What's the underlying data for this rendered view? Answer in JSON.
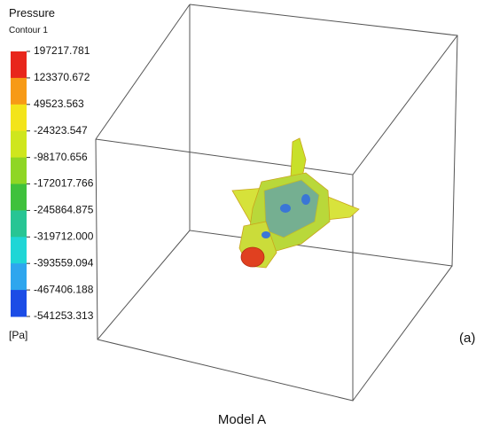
{
  "legend": {
    "title": "Pressure",
    "subtitle": "Contour 1",
    "labels": [
      "197217.781",
      "123370.672",
      "49523.563",
      "-24323.547",
      "-98170.656",
      "-172017.766",
      "-245864.875",
      "-319712.000",
      "-393559.094",
      "-467406.188",
      "-541253.313"
    ],
    "colors": [
      "#e8261c",
      "#f79a16",
      "#f3e41a",
      "#cfe61d",
      "#8fd624",
      "#3fc13c",
      "#27c594",
      "#1fd6d6",
      "#2ea6ee",
      "#1b4ce6"
    ],
    "unit": "[Pa]"
  },
  "caption": "Model A",
  "panel_label": "(a)"
}
